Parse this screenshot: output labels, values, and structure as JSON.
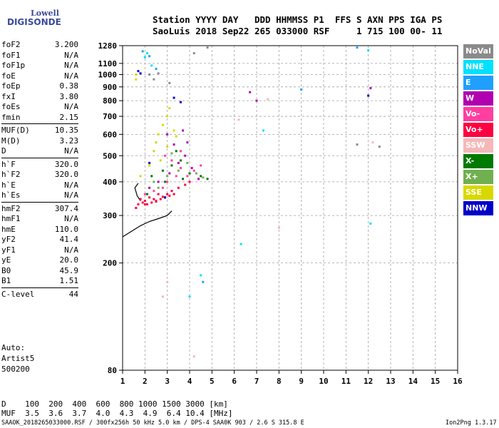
{
  "logo": {
    "line1": "Lowell",
    "line2": "DIGISONDE"
  },
  "header": {
    "row1": "Station YYYY DAY   DDD HHMMSS P1  FFS S AXN PPS IGA PS",
    "row2": "SaoLuis 2018 Sep22 265 033000 RSF     1 715 100 00- 11"
  },
  "params": [
    [
      [
        "foF2",
        "3.200"
      ],
      [
        "foF1",
        "N/A"
      ],
      [
        "foF1p",
        "N/A"
      ],
      [
        "foE",
        "N/A"
      ],
      [
        "foEp",
        "0.38"
      ],
      [
        "fxI",
        "3.80"
      ],
      [
        "foEs",
        "N/A"
      ],
      [
        "fmin",
        "2.15"
      ]
    ],
    [
      [
        "MUF(D)",
        "10.35"
      ],
      [
        "M(D)",
        "3.23"
      ],
      [
        "D",
        "N/A"
      ]
    ],
    [
      [
        "h`F",
        "320.0"
      ],
      [
        "h`F2",
        "320.0"
      ],
      [
        "h`E",
        "N/A"
      ],
      [
        "h`Es",
        "N/A"
      ]
    ],
    [
      [
        "hmF2",
        "307.4"
      ],
      [
        "hmF1",
        "N/A"
      ],
      [
        "hmE",
        "110.0"
      ],
      [
        "yF2",
        "41.4"
      ],
      [
        "yF1",
        "N/A"
      ],
      [
        "yE",
        "20.0"
      ],
      [
        "B0",
        "45.9"
      ],
      [
        "B1",
        "1.51"
      ]
    ],
    [
      [
        "C-level",
        "44"
      ]
    ]
  ],
  "auto": [
    "Auto:",
    "Artist5",
    "500200"
  ],
  "legend": [
    {
      "label": "NoVal",
      "color": "#8a8a8a"
    },
    {
      "label": "NNE",
      "color": "#00e0ff"
    },
    {
      "label": "E",
      "color": "#1fa0ff"
    },
    {
      "label": "W",
      "color": "#b000b0"
    },
    {
      "label": "Vo-",
      "color": "#ff3fa0"
    },
    {
      "label": "Vo+",
      "color": "#ff0040"
    },
    {
      "label": "SSW",
      "color": "#f5b8b8"
    },
    {
      "label": "X-",
      "color": "#007a00"
    },
    {
      "label": "X+",
      "color": "#70b050"
    },
    {
      "label": "SSE",
      "color": "#d8d800"
    },
    {
      "label": "NNW",
      "color": "#0000c8"
    }
  ],
  "footer": {
    "d_row": "D    100  200  400  600  800 1000 1500 3000 [km]",
    "muf_row": "MUF  3.5  3.6  3.7  4.0  4.3  4.9  6.4 10.4 [MHz]",
    "file": "SAAOK_2018265033000.RSF / 300fx256h 50 kHz 5.0 km / DPS-4 SAA0K 903 / 2.6 S 315.8 E",
    "version": "Ion2Png 1.3.17"
  },
  "chart_data": {
    "type": "scatter",
    "title": "",
    "xlabel": "",
    "ylabel": "",
    "xlim": [
      1,
      16
    ],
    "ylim": [
      80,
      1280
    ],
    "x_ticks": [
      "1",
      "2",
      "3",
      "4",
      "5",
      "6",
      "7",
      "8",
      "9",
      "10",
      "11",
      "12",
      "13",
      "14",
      "15",
      "16"
    ],
    "y_ticks": [
      "80",
      "200",
      "300",
      "400",
      "500",
      "600",
      "700",
      "800",
      "900",
      "1000",
      "1100",
      "1280"
    ],
    "y_tick_values": [
      80,
      200,
      300,
      400,
      500,
      600,
      700,
      800,
      900,
      1000,
      1100,
      1280
    ],
    "y_axis": "log",
    "grid": true,
    "series": [
      {
        "name": "Vo+",
        "points": [
          [
            1.7,
            330
          ],
          [
            1.9,
            335
          ],
          [
            2.1,
            330
          ],
          [
            2.3,
            335
          ],
          [
            2.5,
            340
          ],
          [
            2.7,
            345
          ],
          [
            2.9,
            350
          ],
          [
            3.1,
            355
          ],
          [
            3.3,
            360
          ],
          [
            2.0,
            340
          ],
          [
            2.4,
            345
          ],
          [
            2.8,
            352
          ],
          [
            3.0,
            360
          ],
          [
            1.8,
            345
          ],
          [
            2.2,
            350
          ],
          [
            2.6,
            360
          ],
          [
            3.2,
            370
          ],
          [
            3.5,
            380
          ],
          [
            3.8,
            390
          ],
          [
            4.0,
            400
          ],
          [
            1.6,
            320
          ],
          [
            2.0,
            330
          ],
          [
            2.5,
            338
          ]
        ]
      },
      {
        "name": "Vo-",
        "points": [
          [
            2.0,
            360
          ],
          [
            2.4,
            370
          ],
          [
            2.8,
            380
          ],
          [
            3.0,
            400
          ],
          [
            3.4,
            420
          ],
          [
            3.6,
            450
          ],
          [
            3.2,
            480
          ],
          [
            2.9,
            500
          ],
          [
            3.6,
            520
          ],
          [
            3.9,
            420
          ],
          [
            4.2,
            440
          ],
          [
            4.5,
            460
          ]
        ]
      },
      {
        "name": "W",
        "points": [
          [
            2.2,
            380
          ],
          [
            2.6,
            400
          ],
          [
            3.1,
            430
          ],
          [
            3.5,
            470
          ],
          [
            3.8,
            500
          ],
          [
            4.1,
            450
          ],
          [
            3.3,
            550
          ],
          [
            3.0,
            600
          ],
          [
            3.7,
            620
          ],
          [
            6.7,
            860
          ],
          [
            7.0,
            800
          ],
          [
            12.1,
            890
          ],
          [
            4.4,
            410
          ],
          [
            3.9,
            560
          ]
        ]
      },
      {
        "name": "SSE",
        "points": [
          [
            1.6,
            1000
          ],
          [
            1.6,
            960
          ],
          [
            2.6,
            600
          ],
          [
            2.8,
            650
          ],
          [
            3.0,
            700
          ],
          [
            3.1,
            750
          ],
          [
            2.5,
            560
          ],
          [
            3.3,
            620
          ],
          [
            2.7,
            480
          ],
          [
            2.2,
            460
          ],
          [
            3.0,
            540
          ],
          [
            3.4,
            590
          ],
          [
            1.8,
            420
          ],
          [
            2.4,
            520
          ]
        ]
      },
      {
        "name": "X-",
        "points": [
          [
            2.3,
            420
          ],
          [
            2.8,
            440
          ],
          [
            3.2,
            460
          ],
          [
            3.6,
            480
          ],
          [
            4.0,
            430
          ],
          [
            4.5,
            420
          ],
          [
            3.4,
            520
          ],
          [
            2.1,
            360
          ],
          [
            2.9,
            400
          ],
          [
            3.7,
            410
          ],
          [
            4.8,
            410
          ]
        ]
      },
      {
        "name": "X+",
        "points": [
          [
            2.4,
            400
          ],
          [
            3.0,
            420
          ],
          [
            3.5,
            440
          ],
          [
            3.9,
            470
          ],
          [
            4.3,
            430
          ],
          [
            2.6,
            380
          ],
          [
            3.2,
            510
          ],
          [
            4.6,
            415
          ]
        ]
      },
      {
        "name": "NNW",
        "points": [
          [
            1.7,
            1030
          ],
          [
            1.8,
            1010
          ],
          [
            3.3,
            820
          ],
          [
            3.6,
            790
          ],
          [
            12.0,
            835
          ],
          [
            2.2,
            470
          ],
          [
            2.9,
            350
          ]
        ]
      },
      {
        "name": "NNE",
        "points": [
          [
            2.0,
            1160
          ],
          [
            2.3,
            1080
          ],
          [
            2.1,
            1200
          ],
          [
            4.5,
            180
          ],
          [
            4.0,
            150
          ],
          [
            6.3,
            235
          ],
          [
            7.3,
            620
          ],
          [
            12.0,
            1230
          ],
          [
            12.1,
            280
          ]
        ]
      },
      {
        "name": "E",
        "points": [
          [
            2.2,
            1170
          ],
          [
            1.9,
            1220
          ],
          [
            4.6,
            170
          ],
          [
            11.5,
            1260
          ],
          [
            2.5,
            1050
          ],
          [
            9.0,
            880
          ]
        ]
      },
      {
        "name": "SSW",
        "points": [
          [
            8.0,
            270
          ],
          [
            7.5,
            810
          ],
          [
            4.2,
            90
          ],
          [
            2.8,
            150
          ],
          [
            3.0,
            170
          ],
          [
            12.2,
            560
          ],
          [
            6.2,
            680
          ]
        ]
      },
      {
        "name": "NoVal",
        "points": [
          [
            2.2,
            1000
          ],
          [
            2.4,
            960
          ],
          [
            2.6,
            1010
          ],
          [
            3.1,
            930
          ],
          [
            4.2,
            1200
          ],
          [
            4.8,
            1260
          ],
          [
            11.5,
            550
          ],
          [
            12.5,
            540
          ]
        ]
      }
    ],
    "traces": [
      {
        "name": "F-trace",
        "points": [
          [
            1.0,
            250
          ],
          [
            1.4,
            262
          ],
          [
            1.8,
            275
          ],
          [
            2.2,
            285
          ],
          [
            2.6,
            292
          ],
          [
            3.0,
            300
          ],
          [
            3.2,
            312
          ]
        ]
      },
      {
        "name": "lower-trace",
        "points": [
          [
            1.8,
            340
          ],
          [
            1.65,
            355
          ],
          [
            1.55,
            380
          ],
          [
            1.7,
            395
          ]
        ]
      }
    ]
  }
}
